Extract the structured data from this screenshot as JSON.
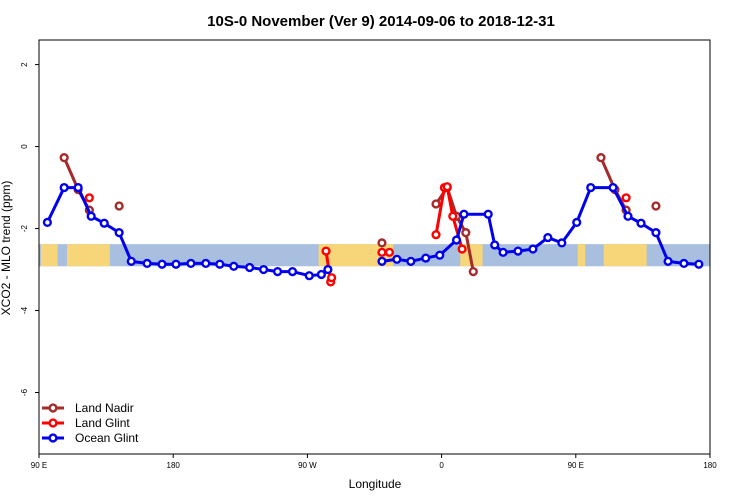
{
  "chart_data": {
    "type": "line",
    "title": "10S-0 November (Ver 9)   2014-09-06 to 2018-12-31",
    "xlabel": "Longitude",
    "ylabel": "XCO2 - MLO trend (ppm)",
    "xlim": [
      90,
      450
    ],
    "ylim": [
      -7.5,
      2.6
    ],
    "x_ticks": [
      {
        "value": 90,
        "label": "90 E"
      },
      {
        "value": 162,
        "label": "180"
      },
      {
        "value": 234,
        "label": "90 W"
      },
      {
        "value": 306,
        "label": "0"
      },
      {
        "value": 378,
        "label": "90 E"
      },
      {
        "value": 450,
        "label": "180"
      }
    ],
    "y_ticks": [
      {
        "value": 2,
        "label": "2"
      },
      {
        "value": 0,
        "label": "0"
      },
      {
        "value": -2,
        "label": "-2"
      },
      {
        "value": -4,
        "label": "-4"
      },
      {
        "value": -6,
        "label": "-6"
      }
    ],
    "legend_position": "bottom-left",
    "band": {
      "y_top": -2.38,
      "y_bottom": -2.92,
      "ocean_color": "#a8bfe0",
      "land_color": "#f7d67a"
    },
    "series": [
      {
        "name": "Land Nadir",
        "color": "#a52a2a",
        "segments": [
          [
            [
              103.5,
              -0.27
            ],
            [
              111,
              -1.05
            ],
            [
              117,
              -1.55
            ]
          ],
          [
            [
              133,
              -1.45
            ]
          ],
          [
            [
              274,
              -2.35
            ]
          ],
          [
            [
              303,
              -1.4
            ],
            [
              309,
              -1.0
            ],
            [
              314,
              -1.7
            ],
            [
              319,
              -2.1
            ],
            [
              323,
              -3.05
            ]
          ],
          [
            [
              391.5,
              -0.27
            ],
            [
              399,
              -1.05
            ],
            [
              405,
              -1.55
            ]
          ],
          [
            [
              421,
              -1.45
            ]
          ]
        ]
      },
      {
        "name": "Land Glint",
        "color": "#ff0000",
        "segments": [
          [
            [
              117,
              -1.25
            ]
          ],
          [
            [
              244,
              -2.55
            ],
            [
              246.5,
              -3.3
            ],
            [
              247,
              -3.2
            ]
          ],
          [
            [
              274,
              -2.58
            ]
          ],
          [
            [
              278,
              -2.58
            ]
          ],
          [
            [
              303,
              -2.15
            ],
            [
              307.5,
              -1.0
            ],
            [
              309,
              -0.98
            ],
            [
              312,
              -1.7
            ],
            [
              317,
              -2.5
            ]
          ],
          [
            [
              405,
              -1.25
            ]
          ]
        ]
      },
      {
        "name": "Ocean Glint",
        "color": "#0000ee",
        "segments": [
          [
            [
              94.5,
              -1.85
            ],
            [
              103.5,
              -1.0
            ],
            [
              111,
              -1.0
            ],
            [
              118,
              -1.7
            ],
            [
              125,
              -1.87
            ],
            [
              133,
              -2.1
            ],
            [
              139.5,
              -2.8
            ],
            [
              148,
              -2.85
            ],
            [
              156,
              -2.87
            ],
            [
              163.5,
              -2.87
            ],
            [
              171.5,
              -2.85
            ],
            [
              179.5,
              -2.85
            ],
            [
              187,
              -2.87
            ],
            [
              194.5,
              -2.92
            ],
            [
              203,
              -2.95
            ],
            [
              210.5,
              -3.0
            ],
            [
              218,
              -3.05
            ],
            [
              226,
              -3.05
            ],
            [
              235,
              -3.15
            ],
            [
              241.5,
              -3.12
            ],
            [
              245,
              -3.0
            ]
          ],
          [
            [
              274,
              -2.8
            ],
            [
              282,
              -2.75
            ],
            [
              289.5,
              -2.8
            ],
            [
              297.5,
              -2.72
            ],
            [
              305,
              -2.65
            ],
            [
              314,
              -2.28
            ],
            [
              318,
              -1.65
            ],
            [
              331,
              -1.65
            ],
            [
              334.5,
              -2.4
            ],
            [
              339,
              -2.58
            ],
            [
              347,
              -2.55
            ],
            [
              355,
              -2.5
            ],
            [
              363,
              -2.22
            ],
            [
              370.5,
              -2.35
            ],
            [
              378.5,
              -1.85
            ],
            [
              386,
              -1.0
            ],
            [
              398,
              -1.0
            ],
            [
              406,
              -1.7
            ],
            [
              413,
              -1.87
            ],
            [
              421,
              -2.1
            ],
            [
              427.5,
              -2.8
            ],
            [
              436,
              -2.85
            ],
            [
              444,
              -2.87
            ]
          ]
        ]
      }
    ]
  }
}
